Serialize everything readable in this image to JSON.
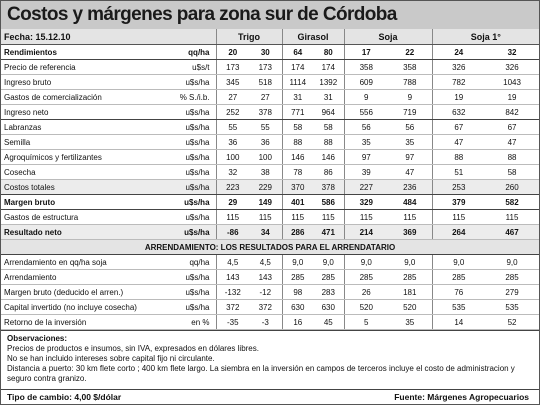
{
  "header": {
    "title": "Costos y márgenes para zona sur de Córdoba"
  },
  "table": {
    "date": "Fecha: 15.12.10",
    "crops": [
      "Trigo",
      "Girasol",
      "Soja",
      "Soja 1°"
    ],
    "yields_label": "Rendimientos",
    "yields_unit": "qq/ha",
    "yields": [
      "20",
      "30",
      "64",
      "80",
      "17",
      "22",
      "24",
      "32"
    ],
    "rows": [
      {
        "label": "Precio de referencia",
        "unit": "u$s/t",
        "values": [
          "173",
          "173",
          "174",
          "174",
          "358",
          "358",
          "326",
          "326"
        ]
      },
      {
        "label": "Ingreso bruto",
        "unit": "u$s/ha",
        "values": [
          "345",
          "518",
          "1114",
          "1392",
          "609",
          "788",
          "782",
          "1043"
        ]
      },
      {
        "label": "Gastos de comercialización",
        "unit": "% S./i.b.",
        "values": [
          "27",
          "27",
          "31",
          "31",
          "9",
          "9",
          "19",
          "19"
        ]
      },
      {
        "label": "Ingreso neto",
        "unit": "u$s/ha",
        "values": [
          "252",
          "378",
          "771",
          "964",
          "556",
          "719",
          "632",
          "842"
        ]
      },
      {
        "label": "Labranzas",
        "unit": "u$s/ha",
        "values": [
          "55",
          "55",
          "58",
          "58",
          "56",
          "56",
          "67",
          "67"
        ]
      },
      {
        "label": "Semilla",
        "unit": "u$s/ha",
        "values": [
          "36",
          "36",
          "88",
          "88",
          "35",
          "35",
          "47",
          "47"
        ]
      },
      {
        "label": "Agroquímicos y fertilizantes",
        "unit": "u$s/ha",
        "values": [
          "100",
          "100",
          "146",
          "146",
          "97",
          "97",
          "88",
          "88"
        ]
      },
      {
        "label": "Cosecha",
        "unit": "u$s/ha",
        "values": [
          "32",
          "38",
          "78",
          "86",
          "39",
          "47",
          "51",
          "58"
        ]
      },
      {
        "label": "Costos totales",
        "unit": "u$s/ha",
        "values": [
          "223",
          "229",
          "370",
          "378",
          "227",
          "236",
          "253",
          "260"
        ]
      },
      {
        "label": "Margen bruto",
        "unit": "u$s/ha",
        "values": [
          "29",
          "149",
          "401",
          "586",
          "329",
          "484",
          "379",
          "582"
        ]
      },
      {
        "label": "Gastos de estructura",
        "unit": "u$s/ha",
        "values": [
          "115",
          "115",
          "115",
          "115",
          "115",
          "115",
          "115",
          "115"
        ]
      },
      {
        "label": "Resultado neto",
        "unit": "u$s/ha",
        "values": [
          "-86",
          "34",
          "286",
          "471",
          "214",
          "369",
          "264",
          "467"
        ]
      }
    ],
    "section": "ARRENDAMIENTO: LOS RESULTADOS PARA EL ARRENDATARIO",
    "lease_rows": [
      {
        "label": "Arrendamiento en qq/ha soja",
        "unit": "qq/ha",
        "values": [
          "4,5",
          "4,5",
          "9,0",
          "9,0",
          "9,0",
          "9,0",
          "9,0",
          "9,0"
        ]
      },
      {
        "label": "Arrendamiento",
        "unit": "u$s/ha",
        "values": [
          "143",
          "143",
          "285",
          "285",
          "285",
          "285",
          "285",
          "285"
        ]
      },
      {
        "label": "Margen bruto (deducido el arren.)",
        "unit": "u$s/ha",
        "values": [
          "-132",
          "-12",
          "98",
          "283",
          "26",
          "181",
          "76",
          "279"
        ]
      },
      {
        "label": "Capital invertido (no incluye cosecha)",
        "unit": "u$s/ha",
        "values": [
          "372",
          "372",
          "630",
          "630",
          "520",
          "520",
          "535",
          "535"
        ]
      },
      {
        "label": "Retorno de la inversión",
        "unit": "en %",
        "values": [
          "-35",
          "-3",
          "16",
          "45",
          "5",
          "35",
          "14",
          "52"
        ]
      }
    ]
  },
  "notes": {
    "title": "Observaciones:",
    "lines": [
      "Precios de productos e insumos, sin IVA, expresados en dólares libres.",
      "No se han incluido intereses sobre capital fijo ni circulante.",
      "Distancia a puerto: 30 km  flete corto ; 400 km flete largo. La siembra en la inversión en campos de terceros incluye el costo de administracion y seguro contra granizo."
    ]
  },
  "footer": {
    "exchange": "Tipo de cambio: 4,00  $/dólar",
    "source": "Fuente: Márgenes Agropecuarios"
  }
}
